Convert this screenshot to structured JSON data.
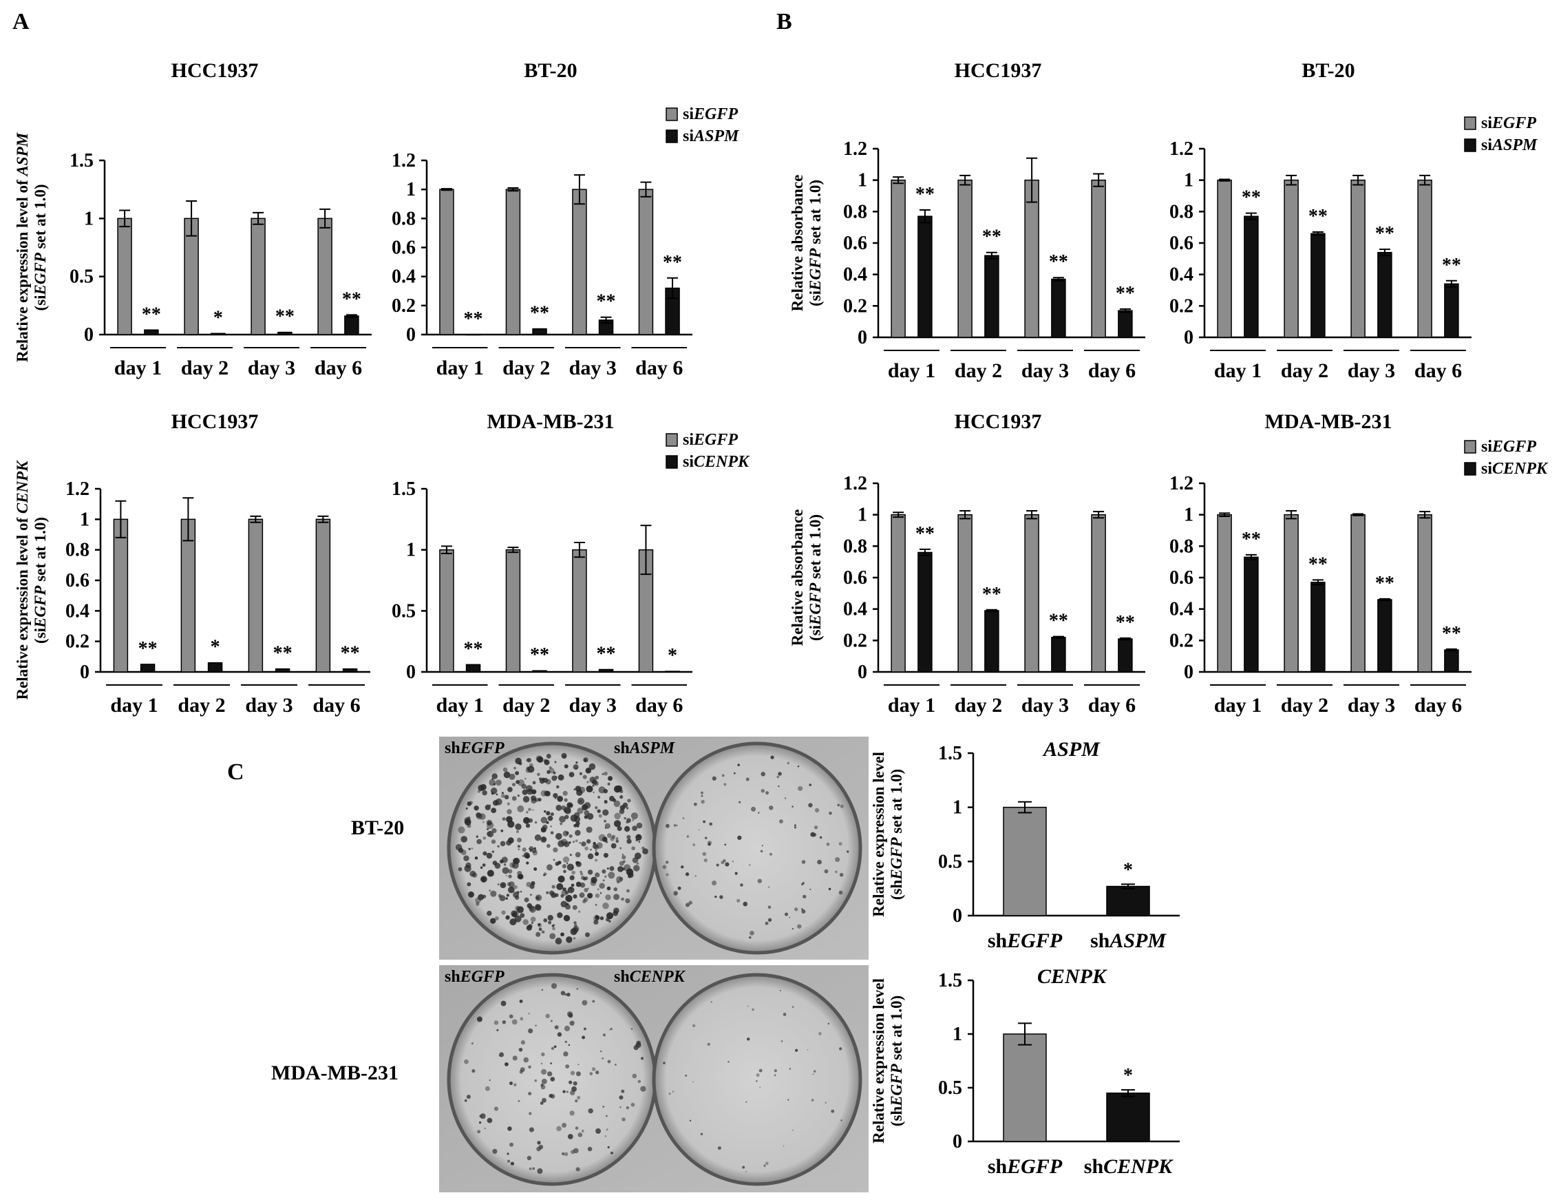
{
  "panel_labels": [
    "A",
    "B",
    "C"
  ],
  "colors": {
    "control_bar": "#8c8c8c",
    "knockdown_bar": "#111111",
    "axis": "#000000"
  },
  "colony_assay": {
    "rows": [
      {
        "cell_line": "BT-20",
        "plates": [
          [
            {
              "t": "sh"
            },
            {
              "t": "EGFP",
              "i": true
            }
          ],
          [
            {
              "t": "sh"
            },
            {
              "t": "ASPM",
              "i": true
            }
          ]
        ]
      },
      {
        "cell_line": "MDA-MB-231",
        "plates": [
          [
            {
              "t": "sh"
            },
            {
              "t": "EGFP",
              "i": true
            }
          ],
          [
            {
              "t": "sh"
            },
            {
              "t": "CENPK",
              "i": true
            }
          ]
        ]
      }
    ]
  },
  "chart_data": [
    {
      "type": "bar",
      "panel": "A",
      "title": "HCC1937",
      "ylabel_parts": [
        [
          {
            "t": "Relative expression level of "
          },
          {
            "t": "ASPM",
            "i": true
          }
        ],
        [
          {
            "t": "(si"
          },
          {
            "t": "EGFP",
            "i": true
          },
          {
            "t": " set at 1.0)"
          }
        ]
      ],
      "ylim": [
        0,
        1.5
      ],
      "yticks": [
        "0",
        "0.5",
        "1",
        "1.5"
      ],
      "categories": [
        "day 1",
        "day 2",
        "day 3",
        "day 6"
      ],
      "series": [
        {
          "legend_parts": [
            {
              "t": "si"
            },
            {
              "t": "EGFP",
              "i": true
            }
          ],
          "values": [
            1,
            1,
            1,
            1
          ],
          "errors": [
            0.07,
            0.15,
            0.05,
            0.08
          ]
        },
        {
          "legend_parts": [
            {
              "t": "si"
            },
            {
              "t": "ASPM",
              "i": true
            }
          ],
          "values": [
            0.04,
            0.01,
            0.02,
            0.16
          ],
          "errors": [
            0,
            0,
            0,
            0.01
          ]
        }
      ],
      "significance": [
        "**",
        "*",
        "**",
        "**"
      ],
      "legend": false
    },
    {
      "type": "bar",
      "panel": "A",
      "title": "BT-20",
      "ylabel_parts": [],
      "ylim": [
        0,
        1.2
      ],
      "yticks": [
        "0",
        "0.2",
        "0.4",
        "0.6",
        "0.8",
        "1",
        "1.2"
      ],
      "categories": [
        "day 1",
        "day 2",
        "day 3",
        "day 6"
      ],
      "series": [
        {
          "legend_parts": [
            {
              "t": "si"
            },
            {
              "t": "EGFP",
              "i": true
            }
          ],
          "values": [
            1,
            1,
            1,
            1
          ],
          "errors": [
            0.005,
            0.01,
            0.1,
            0.05
          ]
        },
        {
          "legend_parts": [
            {
              "t": "si"
            },
            {
              "t": "ASPM",
              "i": true
            }
          ],
          "values": [
            0,
            0.04,
            0.1,
            0.32
          ],
          "errors": [
            0,
            0,
            0.02,
            0.07
          ]
        }
      ],
      "significance": [
        "**",
        "**",
        "**",
        "**"
      ],
      "legend": true
    },
    {
      "type": "bar",
      "panel": "A",
      "title": "HCC1937",
      "ylabel_parts": [
        [
          {
            "t": "Relative expression level of "
          },
          {
            "t": "CENPK",
            "i": true
          }
        ],
        [
          {
            "t": "(si"
          },
          {
            "t": "EGFP",
            "i": true
          },
          {
            "t": " set at 1.0)"
          }
        ]
      ],
      "ylim": [
        0,
        1.2
      ],
      "yticks": [
        "0",
        "0.2",
        "0.4",
        "0.6",
        "0.8",
        "1",
        "1.2"
      ],
      "categories": [
        "day 1",
        "day 2",
        "day 3",
        "day 6"
      ],
      "series": [
        {
          "legend_parts": [
            {
              "t": "si"
            },
            {
              "t": "EGFP",
              "i": true
            }
          ],
          "values": [
            1,
            1,
            1,
            1
          ],
          "errors": [
            0.12,
            0.14,
            0.02,
            0.02
          ]
        },
        {
          "legend_parts": [
            {
              "t": "si"
            },
            {
              "t": "CENPK",
              "i": true
            }
          ],
          "values": [
            0.05,
            0.06,
            0.02,
            0.02
          ],
          "errors": [
            0,
            0,
            0,
            0
          ]
        }
      ],
      "significance": [
        "**",
        "*",
        "**",
        "**"
      ],
      "legend": false
    },
    {
      "type": "bar",
      "panel": "A",
      "title": "MDA-MB-231",
      "ylabel_parts": [],
      "ylim": [
        0,
        1.5
      ],
      "yticks": [
        "0",
        "0.5",
        "1",
        "1.5"
      ],
      "categories": [
        "day 1",
        "day 2",
        "day 3",
        "day 6"
      ],
      "series": [
        {
          "legend_parts": [
            {
              "t": "si"
            },
            {
              "t": "EGFP",
              "i": true
            }
          ],
          "values": [
            1,
            1,
            1,
            1
          ],
          "errors": [
            0.03,
            0.02,
            0.06,
            0.2
          ]
        },
        {
          "legend_parts": [
            {
              "t": "si"
            },
            {
              "t": "CENPK",
              "i": true
            }
          ],
          "values": [
            0.06,
            0.01,
            0.02,
            0.005
          ],
          "errors": [
            0,
            0,
            0,
            0
          ]
        }
      ],
      "significance": [
        "**",
        "**",
        "**",
        "*"
      ],
      "legend": true
    },
    {
      "type": "bar",
      "panel": "B",
      "title": "HCC1937",
      "ylabel_parts": [
        [
          {
            "t": "Relative absorbance"
          }
        ],
        [
          {
            "t": "(si"
          },
          {
            "t": "EGFP",
            "i": true
          },
          {
            "t": " set at 1.0)"
          }
        ]
      ],
      "ylim": [
        0,
        1.2
      ],
      "yticks": [
        "0",
        "0.2",
        "0.4",
        "0.6",
        "0.8",
        "1",
        "1.2"
      ],
      "categories": [
        "day 1",
        "day 2",
        "day 3",
        "day 6"
      ],
      "series": [
        {
          "legend_parts": [
            {
              "t": "si"
            },
            {
              "t": "EGFP",
              "i": true
            }
          ],
          "values": [
            1,
            1,
            1,
            1
          ],
          "errors": [
            0.02,
            0.03,
            0.14,
            0.04
          ]
        },
        {
          "legend_parts": [
            {
              "t": "si"
            },
            {
              "t": "ASPM",
              "i": true
            }
          ],
          "values": [
            0.77,
            0.52,
            0.37,
            0.17
          ],
          "errors": [
            0.04,
            0.02,
            0.01,
            0.01
          ]
        }
      ],
      "significance": [
        "**",
        "**",
        "**",
        "**"
      ],
      "legend": false
    },
    {
      "type": "bar",
      "panel": "B",
      "title": "BT-20",
      "ylabel_parts": [],
      "ylim": [
        0,
        1.2
      ],
      "yticks": [
        "0",
        "0.2",
        "0.4",
        "0.6",
        "0.8",
        "1",
        "1.2"
      ],
      "categories": [
        "day 1",
        "day 2",
        "day 3",
        "day 6"
      ],
      "series": [
        {
          "legend_parts": [
            {
              "t": "si"
            },
            {
              "t": "EGFP",
              "i": true
            }
          ],
          "values": [
            1,
            1,
            1,
            1
          ],
          "errors": [
            0.005,
            0.03,
            0.03,
            0.03
          ]
        },
        {
          "legend_parts": [
            {
              "t": "si"
            },
            {
              "t": "ASPM",
              "i": true
            }
          ],
          "values": [
            0.77,
            0.66,
            0.54,
            0.34
          ],
          "errors": [
            0.02,
            0.01,
            0.02,
            0.02
          ]
        }
      ],
      "significance": [
        "**",
        "**",
        "**",
        "**"
      ],
      "legend": true
    },
    {
      "type": "bar",
      "panel": "B",
      "title": "HCC1937",
      "ylabel_parts": [
        [
          {
            "t": "Relative absorbance"
          }
        ],
        [
          {
            "t": "(si"
          },
          {
            "t": "EGFP",
            "i": true
          },
          {
            "t": " set at 1.0)"
          }
        ]
      ],
      "ylim": [
        0,
        1.2
      ],
      "yticks": [
        "0",
        "0.2",
        "0.4",
        "0.6",
        "0.8",
        "1",
        "1.2"
      ],
      "categories": [
        "day 1",
        "day 2",
        "day 3",
        "day 6"
      ],
      "series": [
        {
          "legend_parts": [
            {
              "t": "si"
            },
            {
              "t": "EGFP",
              "i": true
            }
          ],
          "values": [
            1,
            1,
            1,
            1
          ],
          "errors": [
            0.015,
            0.025,
            0.025,
            0.02
          ]
        },
        {
          "legend_parts": [
            {
              "t": "si"
            },
            {
              "t": "CENPK",
              "i": true
            }
          ],
          "values": [
            0.76,
            0.39,
            0.22,
            0.21
          ],
          "errors": [
            0.02,
            0.005,
            0.005,
            0.005
          ]
        }
      ],
      "significance": [
        "**",
        "**",
        "**",
        "**"
      ],
      "legend": false
    },
    {
      "type": "bar",
      "panel": "B",
      "title": "MDA-MB-231",
      "ylabel_parts": [],
      "ylim": [
        0,
        1.2
      ],
      "yticks": [
        "0",
        "0.2",
        "0.4",
        "0.6",
        "0.8",
        "1",
        "1.2"
      ],
      "categories": [
        "day 1",
        "day 2",
        "day 3",
        "day 6"
      ],
      "series": [
        {
          "legend_parts": [
            {
              "t": "si"
            },
            {
              "t": "EGFP",
              "i": true
            }
          ],
          "values": [
            1,
            1,
            1,
            1
          ],
          "errors": [
            0.01,
            0.025,
            0.005,
            0.02
          ]
        },
        {
          "legend_parts": [
            {
              "t": "si"
            },
            {
              "t": "CENPK",
              "i": true
            }
          ],
          "values": [
            0.73,
            0.57,
            0.46,
            0.14
          ],
          "errors": [
            0.015,
            0.015,
            0.005,
            0.005
          ]
        }
      ],
      "significance": [
        "**",
        "**",
        "**",
        "**"
      ],
      "legend": true
    },
    {
      "type": "bar",
      "panel": "C",
      "title_parts": [
        {
          "t": "ASPM",
          "i": true
        }
      ],
      "ylabel_parts": [
        [
          {
            "t": "Relative expression level"
          }
        ],
        [
          {
            "t": "(sh"
          },
          {
            "t": "EGFP",
            "i": true
          },
          {
            "t": " set at 1.0)"
          }
        ]
      ],
      "ylim": [
        0,
        1.5
      ],
      "yticks": [
        "0",
        "0.5",
        "1",
        "1.5"
      ],
      "categories_parts": [
        [
          {
            "t": "sh"
          },
          {
            "t": "EGFP",
            "i": true
          }
        ],
        [
          {
            "t": "sh"
          },
          {
            "t": "ASPM",
            "i": true
          }
        ]
      ],
      "values": [
        1,
        0.27
      ],
      "errors": [
        0.05,
        0.02
      ],
      "significance": [
        "",
        "*"
      ]
    },
    {
      "type": "bar",
      "panel": "C",
      "title_parts": [
        {
          "t": "CENPK",
          "i": true
        }
      ],
      "ylabel_parts": [
        [
          {
            "t": "Relative expression level"
          }
        ],
        [
          {
            "t": "(sh"
          },
          {
            "t": "EGFP",
            "i": true
          },
          {
            "t": " set at 1.0)"
          }
        ]
      ],
      "ylim": [
        0,
        1.5
      ],
      "yticks": [
        "0",
        "0.5",
        "1",
        "1.5"
      ],
      "categories_parts": [
        [
          {
            "t": "sh"
          },
          {
            "t": "EGFP",
            "i": true
          }
        ],
        [
          {
            "t": "sh"
          },
          {
            "t": "CENPK",
            "i": true
          }
        ]
      ],
      "values": [
        1,
        0.45
      ],
      "errors": [
        0.1,
        0.03
      ],
      "significance": [
        "",
        "*"
      ]
    }
  ]
}
